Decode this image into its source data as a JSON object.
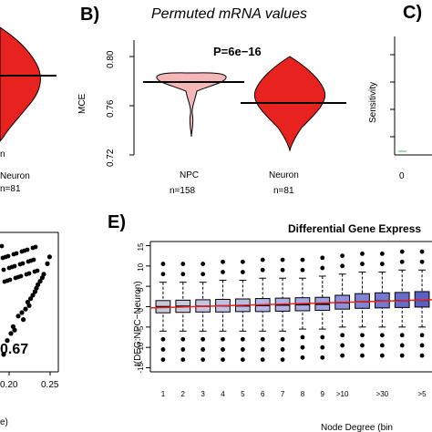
{
  "panels": {
    "A": {
      "group_label": "Neuron",
      "n_label": "n=81",
      "value_text": "0.67",
      "x_ticks": [
        "0.20",
        "0.25"
      ],
      "x_axis_fragment": "e)"
    },
    "B": {
      "letter": "B)",
      "title": "Permuted mRNA values",
      "p_value": "P=6e−16",
      "ylabel": "MCE",
      "y_ticks": [
        "0.80",
        "0.76",
        "0.72"
      ]
    },
    "C": {
      "letter": "C)",
      "ylabel": "Sensitivity",
      "x_tick_fragment": "0"
    },
    "E": {
      "letter": "E)",
      "title": "Differential Gene Express",
      "ylabel": "t(DEG:NPC−Neuron)",
      "xlabel": "Node Degree (bin"
    }
  },
  "chart_data": [
    {
      "panel": "A",
      "type": "scatter",
      "xlabel": "",
      "ylabel": "",
      "xlim": [
        0.18,
        0.26
      ],
      "x_ticks": [
        0.2,
        0.25
      ],
      "points": [
        [
          0.185,
          0.3
        ],
        [
          0.19,
          0.34
        ],
        [
          0.195,
          0.36
        ],
        [
          0.198,
          0.38
        ],
        [
          0.2,
          0.37
        ],
        [
          0.205,
          0.41
        ],
        [
          0.21,
          0.42
        ],
        [
          0.212,
          0.4
        ],
        [
          0.215,
          0.43
        ],
        [
          0.218,
          0.45
        ],
        [
          0.22,
          0.44
        ],
        [
          0.222,
          0.46
        ],
        [
          0.225,
          0.47
        ],
        [
          0.228,
          0.48
        ],
        [
          0.23,
          0.49
        ],
        [
          0.232,
          0.5
        ],
        [
          0.235,
          0.51
        ],
        [
          0.238,
          0.52
        ],
        [
          0.24,
          0.53
        ],
        [
          0.245,
          0.56
        ],
        [
          0.248,
          0.58
        ]
      ],
      "annotation": "0.67"
    },
    {
      "panel": "B",
      "type": "violin",
      "title": "Permuted mRNA values",
      "ylabel": "MCE",
      "ylim": [
        0.72,
        0.82
      ],
      "y_ticks": [
        0.72,
        0.76,
        0.8
      ],
      "groups": [
        {
          "name": "NPC",
          "n": "n=158",
          "median": 0.782,
          "color": "#f4b6b6"
        },
        {
          "name": "Neuron",
          "n": "n=81",
          "median": 0.764,
          "color": "#e8231f"
        }
      ],
      "annotation": "P=6e−16"
    },
    {
      "panel": "E",
      "type": "box",
      "title": "Differential Gene Express",
      "ylabel": "t(DEG:NPC−Neuron)",
      "xlabel": "Node Degree (bin",
      "ylim": [
        -16,
        16
      ],
      "y_ticks": [
        -15,
        -10,
        -5,
        0,
        5,
        10,
        15
      ],
      "categories": [
        "1",
        "2",
        "3",
        "4",
        "5",
        "6",
        "7",
        "8",
        "9",
        ">10",
        "",
        ">30",
        "",
        ">5"
      ],
      "boxes": [
        {
          "q1": -1.5,
          "median": 0,
          "q3": 1.5,
          "lo": -6,
          "hi": 6,
          "color": "#c9c9d9"
        },
        {
          "q1": -1.4,
          "median": 0.1,
          "q3": 1.6,
          "lo": -6,
          "hi": 6,
          "color": "#c9c9dd"
        },
        {
          "q1": -1.3,
          "median": 0.1,
          "q3": 1.7,
          "lo": -6,
          "hi": 6,
          "color": "#c4c4e0"
        },
        {
          "q1": -1.3,
          "median": 0.2,
          "q3": 1.8,
          "lo": -6,
          "hi": 6.5,
          "color": "#bfc0e2"
        },
        {
          "q1": -1.2,
          "median": 0.2,
          "q3": 1.9,
          "lo": -6,
          "hi": 6.5,
          "color": "#babbe4"
        },
        {
          "q1": -1.2,
          "median": 0.3,
          "q3": 2.0,
          "lo": -6,
          "hi": 7,
          "color": "#b4b5e5"
        },
        {
          "q1": -1.1,
          "median": 0.4,
          "q3": 2.1,
          "lo": -6,
          "hi": 7,
          "color": "#afb0e6"
        },
        {
          "q1": -1.0,
          "median": 0.5,
          "q3": 2.2,
          "lo": -5.5,
          "hi": 7,
          "color": "#a8a9e5"
        },
        {
          "q1": -0.9,
          "median": 0.6,
          "q3": 2.3,
          "lo": -5.5,
          "hi": 7.5,
          "color": "#a0a2e4"
        },
        {
          "q1": -0.6,
          "median": 1.0,
          "q3": 2.8,
          "lo": -5,
          "hi": 8,
          "color": "#8e92dc"
        },
        {
          "q1": -0.4,
          "median": 1.2,
          "q3": 3.2,
          "lo": -5,
          "hi": 8.5,
          "color": "#7f84d6"
        },
        {
          "q1": -0.3,
          "median": 1.4,
          "q3": 3.4,
          "lo": -5,
          "hi": 8.5,
          "color": "#7378d0"
        },
        {
          "q1": -0.2,
          "median": 1.5,
          "q3": 3.5,
          "lo": -5,
          "hi": 9,
          "color": "#666cc9"
        },
        {
          "q1": -0.1,
          "median": 1.6,
          "q3": 3.7,
          "lo": -5,
          "hi": 9,
          "color": "#5a60c2"
        }
      ],
      "trend_line": {
        "color": "#e8231f",
        "start": -0.3,
        "end": 1.7
      }
    }
  ]
}
